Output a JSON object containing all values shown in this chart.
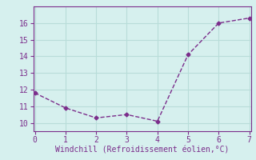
{
  "x": [
    0,
    1,
    2,
    3,
    4,
    5,
    6,
    7
  ],
  "y": [
    11.8,
    10.9,
    10.3,
    10.5,
    10.1,
    14.1,
    16.0,
    16.3
  ],
  "xlim": [
    -0.05,
    7.05
  ],
  "ylim": [
    9.5,
    17.0
  ],
  "xticks": [
    0,
    1,
    2,
    3,
    4,
    5,
    6,
    7
  ],
  "yticks": [
    10,
    11,
    12,
    13,
    14,
    15,
    16
  ],
  "xlabel": "Windchill (Refroidissement éolien,°C)",
  "line_color": "#7b2d8b",
  "marker": "D",
  "marker_size": 2.5,
  "bg_color": "#d6f0ee",
  "grid_color": "#b8ddd9",
  "tick_label_color": "#7b2d8b",
  "axis_label_color": "#7b2d8b",
  "line_width": 1.0,
  "font_size_ticks": 7,
  "font_size_label": 7
}
